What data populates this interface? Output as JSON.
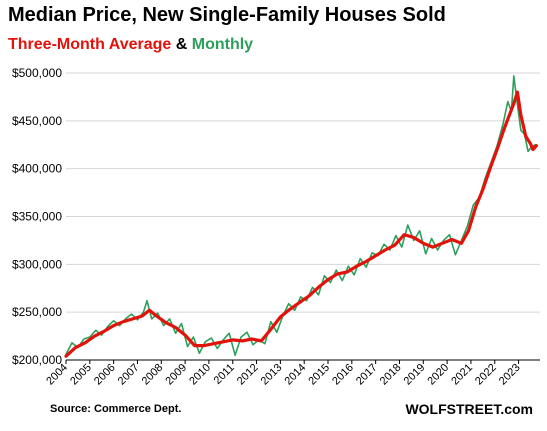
{
  "chart_data": {
    "type": "line",
    "title": "Median Price, New Single-Family Houses Sold",
    "subtitle": {
      "part1": "Three-Month Average",
      "part2": " & ",
      "part3": "Monthly"
    },
    "xlabel": "",
    "ylabel": "",
    "x_range": [
      2004,
      2023.9
    ],
    "ylim": [
      200000,
      500000
    ],
    "yticks": [
      200000,
      250000,
      300000,
      350000,
      400000,
      450000,
      500000
    ],
    "ytick_labels": [
      "$200,000",
      "$250,000",
      "$300,000",
      "$350,000",
      "$400,000",
      "$450,000",
      "$500,000"
    ],
    "xticks": [
      2004,
      2005,
      2006,
      2007,
      2008,
      2009,
      2010,
      2011,
      2012,
      2013,
      2014,
      2015,
      2016,
      2017,
      2018,
      2019,
      2020,
      2021,
      2022,
      2023
    ],
    "xtick_labels": [
      "2004",
      "2005",
      "2006",
      "2007",
      "2008",
      "2009",
      "2010",
      "2011",
      "2012",
      "2013",
      "2014",
      "2015",
      "2016",
      "2017",
      "2018",
      "2019",
      "2020",
      "2021",
      "2022",
      "2023"
    ],
    "grid": "horizontal",
    "series": [
      {
        "name": "Monthly",
        "color": "#2ca05a",
        "points": [
          [
            2004.0,
            206000
          ],
          [
            2004.25,
            218000
          ],
          [
            2004.5,
            213000
          ],
          [
            2004.75,
            222000
          ],
          [
            2005.0,
            224000
          ],
          [
            2005.25,
            231000
          ],
          [
            2005.5,
            226000
          ],
          [
            2005.75,
            235000
          ],
          [
            2006.0,
            241000
          ],
          [
            2006.25,
            236000
          ],
          [
            2006.5,
            243000
          ],
          [
            2006.75,
            248000
          ],
          [
            2007.0,
            242000
          ],
          [
            2007.25,
            250000
          ],
          [
            2007.4,
            262000
          ],
          [
            2007.6,
            243000
          ],
          [
            2007.85,
            249000
          ],
          [
            2008.1,
            236000
          ],
          [
            2008.35,
            243000
          ],
          [
            2008.6,
            228000
          ],
          [
            2008.85,
            238000
          ],
          [
            2009.1,
            214000
          ],
          [
            2009.35,
            224000
          ],
          [
            2009.6,
            207000
          ],
          [
            2009.85,
            219000
          ],
          [
            2010.1,
            223000
          ],
          [
            2010.35,
            212000
          ],
          [
            2010.6,
            221000
          ],
          [
            2010.85,
            228000
          ],
          [
            2011.1,
            205000
          ],
          [
            2011.35,
            224000
          ],
          [
            2011.6,
            229000
          ],
          [
            2011.85,
            216000
          ],
          [
            2012.1,
            221000
          ],
          [
            2012.35,
            217000
          ],
          [
            2012.6,
            240000
          ],
          [
            2012.85,
            229000
          ],
          [
            2013.1,
            246000
          ],
          [
            2013.35,
            259000
          ],
          [
            2013.6,
            252000
          ],
          [
            2013.85,
            266000
          ],
          [
            2014.1,
            262000
          ],
          [
            2014.35,
            276000
          ],
          [
            2014.6,
            268000
          ],
          [
            2014.85,
            288000
          ],
          [
            2015.1,
            281000
          ],
          [
            2015.35,
            294000
          ],
          [
            2015.6,
            283000
          ],
          [
            2015.85,
            298000
          ],
          [
            2016.1,
            289000
          ],
          [
            2016.35,
            306000
          ],
          [
            2016.6,
            297000
          ],
          [
            2016.85,
            312000
          ],
          [
            2017.1,
            309000
          ],
          [
            2017.35,
            321000
          ],
          [
            2017.6,
            315000
          ],
          [
            2017.85,
            330000
          ],
          [
            2018.1,
            318000
          ],
          [
            2018.35,
            341000
          ],
          [
            2018.6,
            325000
          ],
          [
            2018.85,
            335000
          ],
          [
            2019.1,
            311000
          ],
          [
            2019.35,
            327000
          ],
          [
            2019.6,
            315000
          ],
          [
            2019.85,
            325000
          ],
          [
            2020.1,
            331000
          ],
          [
            2020.35,
            310000
          ],
          [
            2020.6,
            325000
          ],
          [
            2020.85,
            340000
          ],
          [
            2021.1,
            362000
          ],
          [
            2021.35,
            370000
          ],
          [
            2021.6,
            390000
          ],
          [
            2021.85,
            407000
          ],
          [
            2022.1,
            424000
          ],
          [
            2022.35,
            447000
          ],
          [
            2022.55,
            470000
          ],
          [
            2022.7,
            460000
          ],
          [
            2022.8,
            497000
          ],
          [
            2022.95,
            467000
          ],
          [
            2023.1,
            440000
          ],
          [
            2023.25,
            436000
          ],
          [
            2023.4,
            418000
          ],
          [
            2023.55,
            423000
          ],
          [
            2023.7,
            425000
          ]
        ]
      },
      {
        "name": "Three-Month Average",
        "color": "#e3120b",
        "points": [
          [
            2004.0,
            204000
          ],
          [
            2004.4,
            213000
          ],
          [
            2004.8,
            218000
          ],
          [
            2005.2,
            225000
          ],
          [
            2005.6,
            230000
          ],
          [
            2006.0,
            236000
          ],
          [
            2006.4,
            240000
          ],
          [
            2006.8,
            243000
          ],
          [
            2007.2,
            246000
          ],
          [
            2007.5,
            252000
          ],
          [
            2007.8,
            246000
          ],
          [
            2008.2,
            239000
          ],
          [
            2008.6,
            234000
          ],
          [
            2009.0,
            226000
          ],
          [
            2009.4,
            215000
          ],
          [
            2009.8,
            215000
          ],
          [
            2010.2,
            217000
          ],
          [
            2010.6,
            219000
          ],
          [
            2011.0,
            221000
          ],
          [
            2011.4,
            220000
          ],
          [
            2011.8,
            222000
          ],
          [
            2012.2,
            220000
          ],
          [
            2012.6,
            232000
          ],
          [
            2013.0,
            245000
          ],
          [
            2013.4,
            253000
          ],
          [
            2013.8,
            260000
          ],
          [
            2014.2,
            267000
          ],
          [
            2014.6,
            276000
          ],
          [
            2015.0,
            284000
          ],
          [
            2015.4,
            290000
          ],
          [
            2015.8,
            292000
          ],
          [
            2016.2,
            298000
          ],
          [
            2016.6,
            303000
          ],
          [
            2017.0,
            309000
          ],
          [
            2017.4,
            315000
          ],
          [
            2017.8,
            320000
          ],
          [
            2018.2,
            331000
          ],
          [
            2018.6,
            328000
          ],
          [
            2019.0,
            322000
          ],
          [
            2019.4,
            318000
          ],
          [
            2019.8,
            322000
          ],
          [
            2020.2,
            326000
          ],
          [
            2020.6,
            322000
          ],
          [
            2020.9,
            335000
          ],
          [
            2021.2,
            360000
          ],
          [
            2021.5,
            378000
          ],
          [
            2021.8,
            400000
          ],
          [
            2022.1,
            420000
          ],
          [
            2022.4,
            442000
          ],
          [
            2022.6,
            455000
          ],
          [
            2022.8,
            468000
          ],
          [
            2022.95,
            480000
          ],
          [
            2023.1,
            456000
          ],
          [
            2023.3,
            434000
          ],
          [
            2023.5,
            426000
          ],
          [
            2023.6,
            420000
          ],
          [
            2023.75,
            424000
          ]
        ]
      }
    ],
    "colors": {
      "monthly": "#2ca05a",
      "average": "#e3120b",
      "grid": "#d6d6d6",
      "axis": "#000000"
    }
  },
  "footer": {
    "source": "Source: Commerce Dept.",
    "brand": "WOLFSTREET.com"
  }
}
